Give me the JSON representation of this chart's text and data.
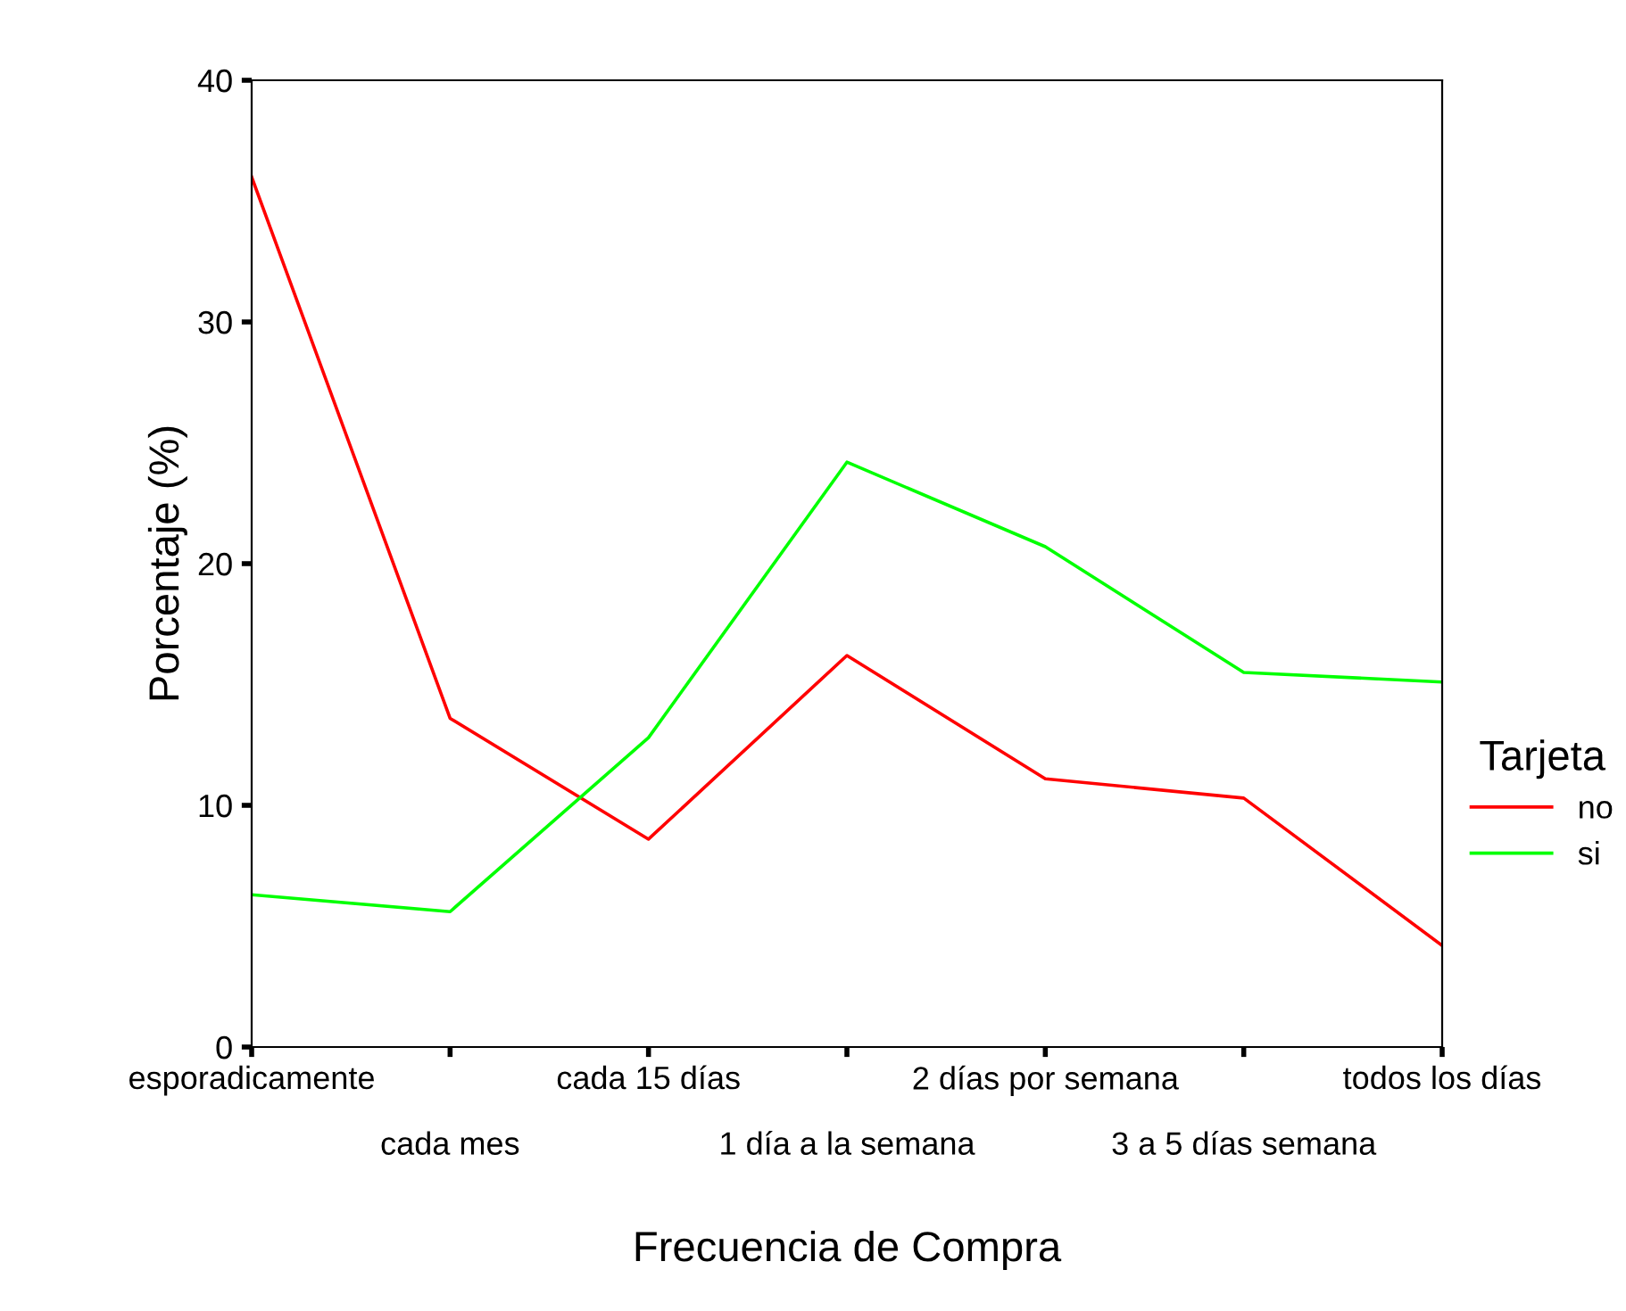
{
  "chart_data": {
    "type": "line",
    "xlabel": "Frecuencia de Compra",
    "ylabel": "Porcentaje (%)",
    "legend_title": "Tarjeta",
    "legend": "right",
    "categories": [
      "esporadicamente",
      "cada mes",
      "cada 15 días",
      "1 día a la semana",
      "2 días por semana",
      "3 a 5 días semana",
      "todos los días"
    ],
    "series": [
      {
        "name": "no",
        "color": "#ff0000",
        "values": [
          36.0,
          13.6,
          8.6,
          16.2,
          11.1,
          10.3,
          4.2
        ]
      },
      {
        "name": "si",
        "color": "#00ff00",
        "values": [
          6.3,
          5.6,
          12.8,
          24.2,
          20.7,
          15.5,
          15.1
        ]
      }
    ],
    "ylim": [
      0,
      40
    ],
    "yticks": [
      0,
      10,
      20,
      30,
      40
    ],
    "grid": false,
    "marker": "none",
    "line_style": "solid"
  }
}
